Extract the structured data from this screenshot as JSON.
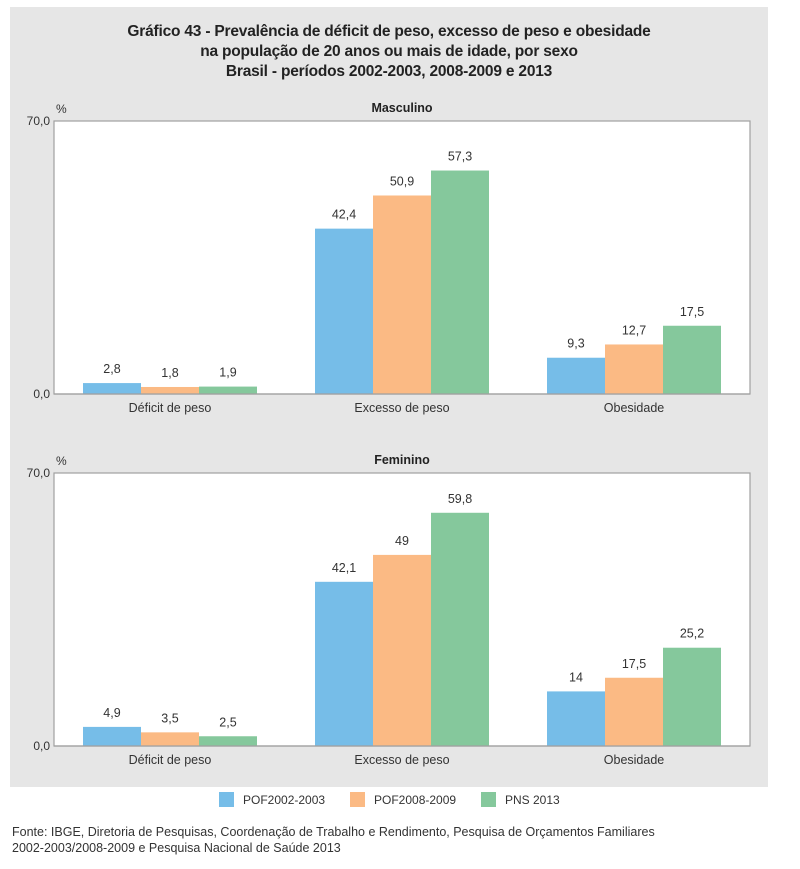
{
  "title": {
    "line1": "Gráfico 43 - Prevalência de déficit de peso, excesso de peso e obesidade",
    "line2": "na população de 20 anos ou mais de idade, por sexo",
    "line3": "Brasil - períodos 2002-2003, 2008-2009 e 2013"
  },
  "chart_data": [
    {
      "type": "bar",
      "title": "Masculino",
      "ylabel": "%",
      "xlabel": "",
      "ylim": [
        0,
        70
      ],
      "yticks": [
        "0,0",
        "70,0"
      ],
      "grid": false,
      "categories": [
        "Déficit de peso",
        "Excesso de peso",
        "Obesidade"
      ],
      "series": [
        {
          "name": "POF2002-2003",
          "values": [
            2.8,
            42.4,
            9.3
          ],
          "labels": [
            "2,8",
            "42,4",
            "9,3"
          ]
        },
        {
          "name": "POF2008-2009",
          "values": [
            1.8,
            50.9,
            12.7
          ],
          "labels": [
            "1,8",
            "50,9",
            "12,7"
          ]
        },
        {
          "name": "PNS 2013",
          "values": [
            1.9,
            57.3,
            17.5
          ],
          "labels": [
            "1,9",
            "57,3",
            "17,5"
          ]
        }
      ]
    },
    {
      "type": "bar",
      "title": "Feminino",
      "ylabel": "%",
      "xlabel": "",
      "ylim": [
        0,
        70
      ],
      "yticks": [
        "0,0",
        "70,0"
      ],
      "grid": false,
      "categories": [
        "Déficit de peso",
        "Excesso de peso",
        "Obesidade"
      ],
      "series": [
        {
          "name": "POF2002-2003",
          "values": [
            4.9,
            42.1,
            14
          ],
          "labels": [
            "4,9",
            "42,1",
            "14"
          ]
        },
        {
          "name": "POF2008-2009",
          "values": [
            3.5,
            49,
            17.5
          ],
          "labels": [
            "3,5",
            "49",
            "17,5"
          ]
        },
        {
          "name": "PNS 2013",
          "values": [
            2.5,
            59.8,
            25.2
          ],
          "labels": [
            "2,5",
            "59,8",
            "25,2"
          ]
        }
      ]
    }
  ],
  "legend": {
    "position": "bottom",
    "items": [
      {
        "label": "POF2002-2003",
        "color": "#76BDE8"
      },
      {
        "label": "POF2008-2009",
        "color": "#FBBA84"
      },
      {
        "label": "PNS 2013",
        "color": "#85C89C"
      }
    ]
  },
  "source": {
    "line1": "Fonte: IBGE, Diretoria de Pesquisas, Coordenação de Trabalho e Rendimento, Pesquisa de Orçamentos Familiares",
    "line2": "2002-2003/2008-2009 e Pesquisa Nacional de Saúde 2013"
  }
}
